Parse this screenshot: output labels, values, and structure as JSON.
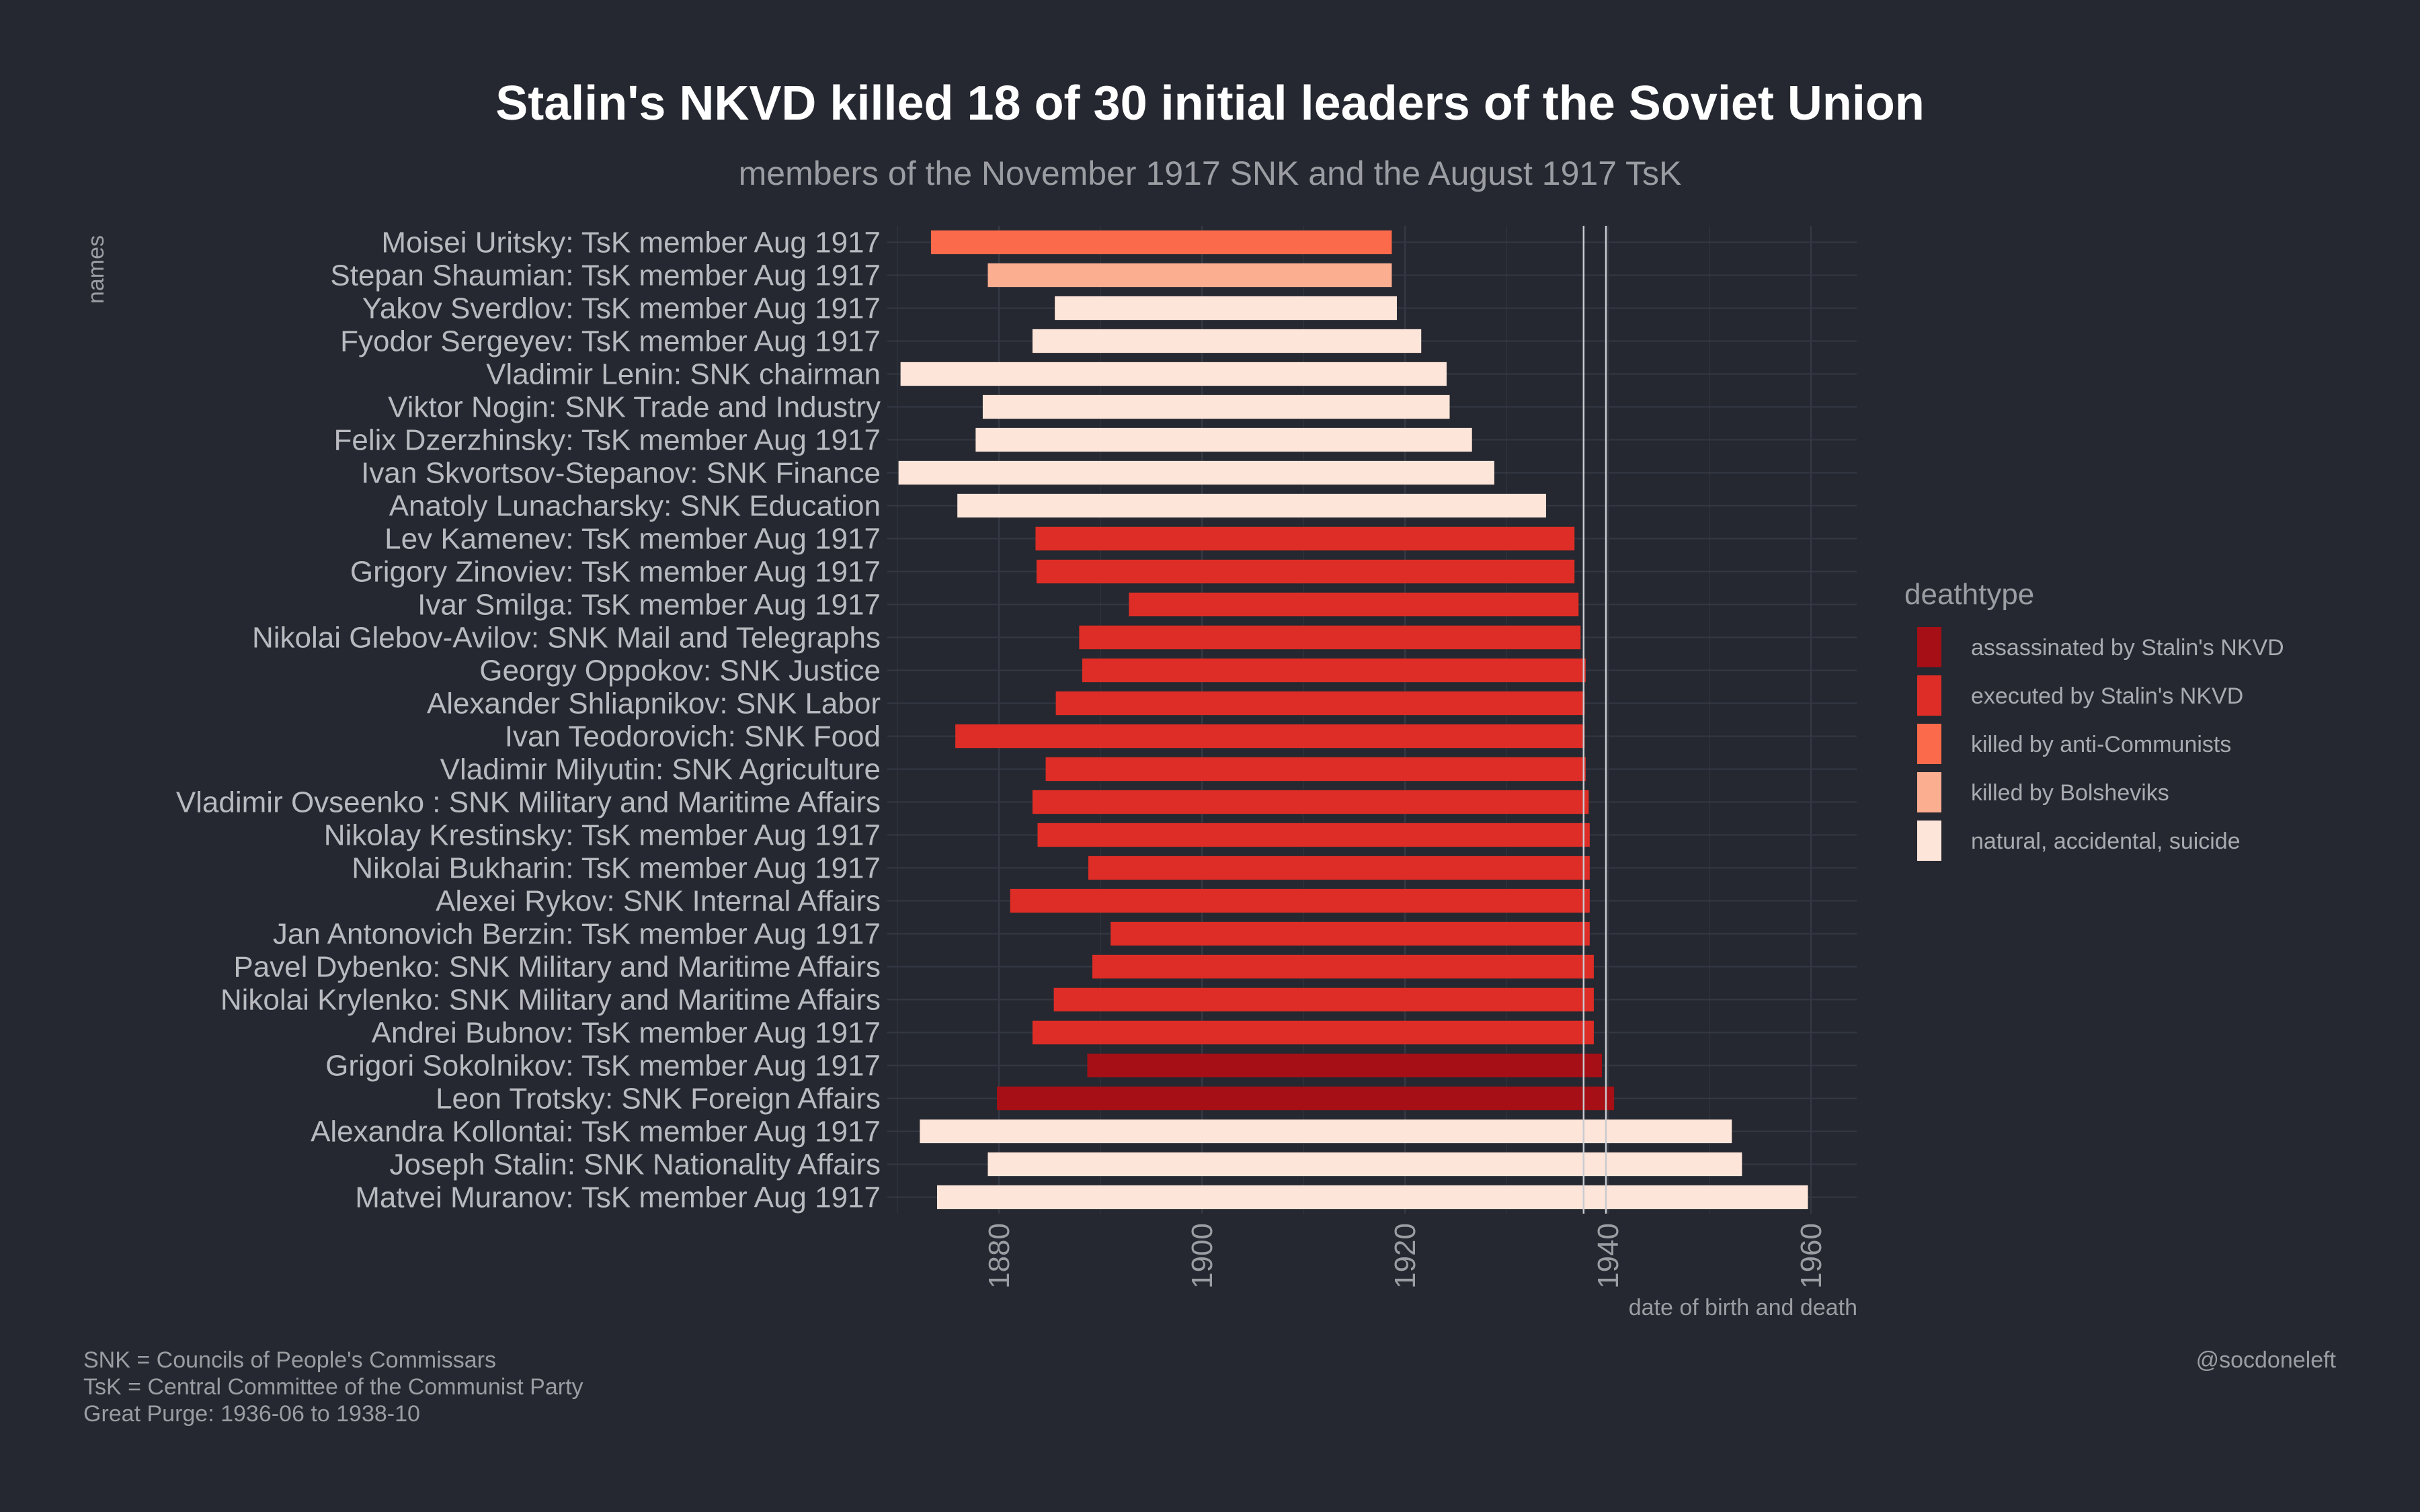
{
  "chart_data": {
    "type": "bar",
    "title": "Stalin's NKVD killed 18 of 30 initial leaders of the Soviet Union",
    "subtitle": "members of the November 1917 SNK and the August 1917 TsK",
    "ylabel": "names",
    "xlabel": "date of birth and death",
    "xlim": [
      1869,
      1964.5
    ],
    "xticks": [
      "1880",
      "1900",
      "1920",
      "1940",
      "1960"
    ],
    "xtick_values": [
      1880,
      1900,
      1920,
      1940,
      1960
    ],
    "reference_lines": [
      1937.6,
      1939.8
    ],
    "grid": true,
    "legend": {
      "title": "deathtype",
      "position": "right",
      "entries": [
        {
          "label": "assassinated by Stalin's NKVD",
          "color": "#a50f15"
        },
        {
          "label": "executed by Stalin's NKVD",
          "color": "#de2d26"
        },
        {
          "label": "killed by anti-Communists",
          "color": "#fb6a4a"
        },
        {
          "label": "killed by Bolsheviks",
          "color": "#fcae91"
        },
        {
          "label": "natural, accidental, suicide",
          "color": "#fee5d9"
        }
      ]
    },
    "series": [
      {
        "name": "Moisei Uritsky: TsK member Aug 1917",
        "start": 1873.3,
        "end": 1918.7,
        "type": 2
      },
      {
        "name": "Stepan Shaumian: TsK member Aug 1917",
        "start": 1878.9,
        "end": 1918.7,
        "type": 3
      },
      {
        "name": "Yakov Sverdlov: TsK member Aug 1917",
        "start": 1885.5,
        "end": 1919.2,
        "type": 4
      },
      {
        "name": "Fyodor Sergeyev: TsK member Aug 1917",
        "start": 1883.3,
        "end": 1921.6,
        "type": 4
      },
      {
        "name": "Vladimir Lenin: SNK chairman",
        "start": 1870.3,
        "end": 1924.1,
        "type": 4
      },
      {
        "name": "Viktor Nogin: SNK Trade and Industry",
        "start": 1878.4,
        "end": 1924.4,
        "type": 4
      },
      {
        "name": "Felix Dzerzhinsky: TsK member Aug 1917",
        "start": 1877.7,
        "end": 1926.6,
        "type": 4
      },
      {
        "name": "Ivan Skvortsov-Stepanov: SNK Finance",
        "start": 1870.1,
        "end": 1928.8,
        "type": 4
      },
      {
        "name": "Anatoly Lunacharsky: SNK Education",
        "start": 1875.9,
        "end": 1933.9,
        "type": 4
      },
      {
        "name": "Lev Kamenev: TsK member Aug 1917",
        "start": 1883.6,
        "end": 1936.7,
        "type": 1
      },
      {
        "name": "Grigory Zinoviev: TsK member Aug 1917",
        "start": 1883.7,
        "end": 1936.7,
        "type": 1
      },
      {
        "name": "Ivar Smilga: TsK member Aug 1917",
        "start": 1892.8,
        "end": 1937.1,
        "type": 1
      },
      {
        "name": "Nikolai Glebov-Avilov: SNK Mail and Telegraphs",
        "start": 1887.9,
        "end": 1937.3,
        "type": 1
      },
      {
        "name": "Georgy Oppokov: SNK Justice",
        "start": 1888.2,
        "end": 1937.8,
        "type": 1
      },
      {
        "name": "Alexander Shliapnikov: SNK Labor",
        "start": 1885.6,
        "end": 1937.7,
        "type": 1
      },
      {
        "name": "Ivan Teodorovich: SNK Food",
        "start": 1875.7,
        "end": 1937.7,
        "type": 1
      },
      {
        "name": "Vladimir Milyutin: SNK Agriculture",
        "start": 1884.6,
        "end": 1937.8,
        "type": 1
      },
      {
        "name": "Vladimir Ovseenko : SNK Military and Maritime Affairs",
        "start": 1883.3,
        "end": 1938.1,
        "type": 1
      },
      {
        "name": "Nikolay Krestinsky: TsK member Aug 1917",
        "start": 1883.8,
        "end": 1938.2,
        "type": 1
      },
      {
        "name": "Nikolai Bukharin: TsK member Aug 1917",
        "start": 1888.8,
        "end": 1938.2,
        "type": 1
      },
      {
        "name": "Alexei Rykov: SNK Internal Affairs",
        "start": 1881.1,
        "end": 1938.2,
        "type": 1
      },
      {
        "name": "Jan Antonovich Berzin: TsK member Aug 1917",
        "start": 1891.0,
        "end": 1938.2,
        "type": 1
      },
      {
        "name": "Pavel Dybenko: SNK Military and Maritime Affairs",
        "start": 1889.2,
        "end": 1938.6,
        "type": 1
      },
      {
        "name": "Nikolai Krylenko: SNK Military and Maritime Affairs",
        "start": 1885.4,
        "end": 1938.6,
        "type": 1
      },
      {
        "name": "Andrei Bubnov: TsK member Aug 1917",
        "start": 1883.3,
        "end": 1938.6,
        "type": 1
      },
      {
        "name": "Grigori Sokolnikov: TsK member Aug 1917",
        "start": 1888.7,
        "end": 1939.4,
        "type": 0
      },
      {
        "name": "Leon Trotsky: SNK Foreign Affairs",
        "start": 1879.8,
        "end": 1940.6,
        "type": 0
      },
      {
        "name": "Alexandra Kollontai: TsK member Aug 1917",
        "start": 1872.2,
        "end": 1952.2,
        "type": 4
      },
      {
        "name": "Joseph Stalin: SNK Nationality Affairs",
        "start": 1878.9,
        "end": 1953.2,
        "type": 4
      },
      {
        "name": "Matvei Muranov: TsK member Aug 1917",
        "start": 1873.9,
        "end": 1959.7,
        "type": 4
      }
    ]
  },
  "captions": {
    "left": [
      "SNK = Councils of People's Commissars",
      "TsK = Central Committee of the Communist Party",
      "Great Purge: 1936-06 to 1938-10"
    ],
    "right": "@socdoneleft"
  }
}
